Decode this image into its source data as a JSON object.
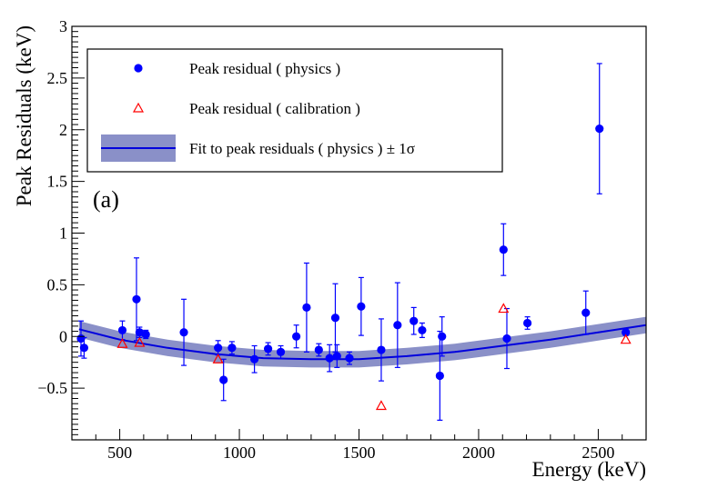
{
  "colors": {
    "physics": "#0000ff",
    "calibration": "#ff0000",
    "fit_line": "#0000dd",
    "fit_band": "#8a90c8"
  },
  "chart_data": {
    "type": "scatter",
    "title": "",
    "panel_label": "(a)",
    "xlabel": "Energy (keV)",
    "ylabel": "Peak Residuals (keV)",
    "xlim": [
      300,
      2700
    ],
    "ylim": [
      -1.0,
      3.0
    ],
    "x_ticks": [
      500,
      1000,
      1500,
      2000,
      2500
    ],
    "x_tick_labels": [
      "500",
      "1000",
      "1500",
      "2000",
      "2500"
    ],
    "y_ticks": [
      -0.5,
      0,
      0.5,
      1,
      1.5,
      2,
      2.5,
      3
    ],
    "y_tick_labels": [
      "−0.5",
      "0",
      "0.5",
      "1",
      "1.5",
      "2",
      "2.5",
      "3"
    ],
    "legend": {
      "position": "top-left",
      "entries": [
        {
          "name": "Peak residual ( physics )",
          "symbol": "filled-circle"
        },
        {
          "name": "Peak residual ( calibration )",
          "symbol": "open-triangle"
        },
        {
          "name": "Fit to peak residuals ( physics ) ± 1σ",
          "symbol": "line-band"
        }
      ]
    },
    "series": [
      {
        "name": "Peak residual ( physics )",
        "marker": "filled-circle",
        "points": [
          {
            "x": 338,
            "y": -0.02,
            "err": 0.17
          },
          {
            "x": 351,
            "y": -0.11,
            "err": 0.1
          },
          {
            "x": 511,
            "y": 0.06,
            "err": 0.09
          },
          {
            "x": 570,
            "y": 0.36,
            "err": 0.4
          },
          {
            "x": 583,
            "y": 0.04,
            "err": 0.05
          },
          {
            "x": 609,
            "y": 0.02,
            "err": 0.04
          },
          {
            "x": 768,
            "y": 0.04,
            "err": 0.32
          },
          {
            "x": 911,
            "y": -0.11,
            "err": 0.07
          },
          {
            "x": 934,
            "y": -0.42,
            "err": 0.2
          },
          {
            "x": 969,
            "y": -0.11,
            "err": 0.06
          },
          {
            "x": 1063,
            "y": -0.22,
            "err": 0.13
          },
          {
            "x": 1120,
            "y": -0.12,
            "err": 0.06
          },
          {
            "x": 1173,
            "y": -0.15,
            "err": 0.06
          },
          {
            "x": 1238,
            "y": 0.0,
            "err": 0.11
          },
          {
            "x": 1281,
            "y": 0.28,
            "err": 0.43
          },
          {
            "x": 1332,
            "y": -0.13,
            "err": 0.06
          },
          {
            "x": 1377,
            "y": -0.21,
            "err": 0.13
          },
          {
            "x": 1401,
            "y": 0.18,
            "err": 0.33
          },
          {
            "x": 1408,
            "y": -0.19,
            "err": 0.11
          },
          {
            "x": 1460,
            "y": -0.21,
            "err": 0.06
          },
          {
            "x": 1509,
            "y": 0.29,
            "err": 0.28
          },
          {
            "x": 1593,
            "y": -0.13,
            "err": 0.3
          },
          {
            "x": 1661,
            "y": 0.11,
            "err": 0.41
          },
          {
            "x": 1729,
            "y": 0.15,
            "err": 0.13
          },
          {
            "x": 1764,
            "y": 0.06,
            "err": 0.07
          },
          {
            "x": 1838,
            "y": -0.38,
            "err": 0.43
          },
          {
            "x": 1847,
            "y": 0.0,
            "err": 0.19
          },
          {
            "x": 2104,
            "y": 0.84,
            "err": 0.25
          },
          {
            "x": 2118,
            "y": -0.02,
            "err": 0.29
          },
          {
            "x": 2204,
            "y": 0.13,
            "err": 0.06
          },
          {
            "x": 2448,
            "y": 0.23,
            "err": 0.21
          },
          {
            "x": 2505,
            "y": 2.01,
            "err": 0.63
          },
          {
            "x": 2615,
            "y": 0.04,
            "err": 0.03
          }
        ]
      },
      {
        "name": "Peak residual ( calibration )",
        "marker": "open-triangle",
        "points": [
          {
            "x": 511,
            "y": -0.07
          },
          {
            "x": 583,
            "y": -0.06
          },
          {
            "x": 911,
            "y": -0.22
          },
          {
            "x": 1593,
            "y": -0.67
          },
          {
            "x": 2104,
            "y": 0.27
          },
          {
            "x": 2615,
            "y": -0.03
          }
        ]
      },
      {
        "name": "Fit to peak residuals ( physics ) ± 1σ",
        "type": "line-band",
        "x": [
          330,
          500,
          700,
          900,
          1100,
          1300,
          1500,
          1700,
          1900,
          2100,
          2300,
          2500,
          2700
        ],
        "y": [
          0.07,
          -0.03,
          -0.11,
          -0.17,
          -0.21,
          -0.22,
          -0.22,
          -0.19,
          -0.15,
          -0.09,
          -0.03,
          0.04,
          0.11
        ],
        "band": 0.08
      }
    ]
  }
}
